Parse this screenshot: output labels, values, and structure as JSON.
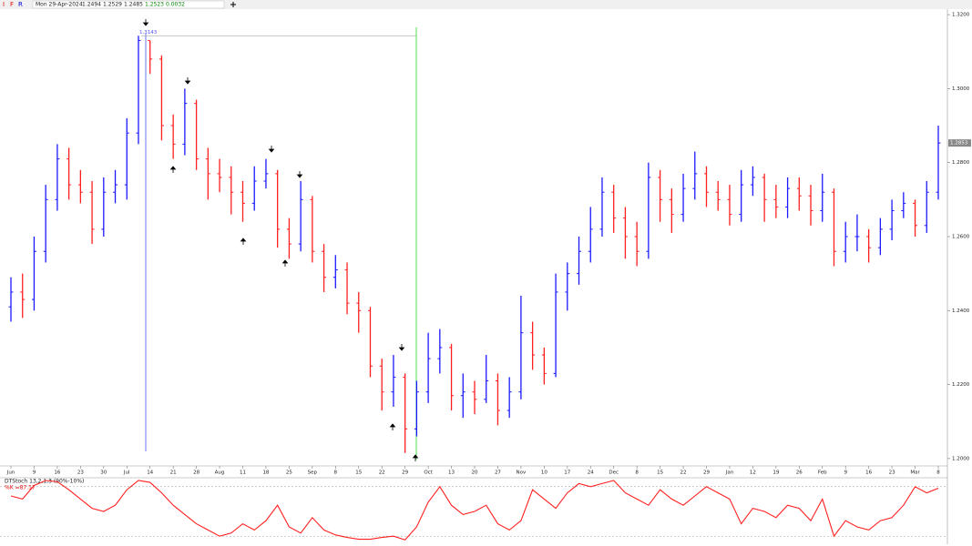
{
  "toolbar": {
    "icons": [
      "I",
      "F",
      "R"
    ],
    "date": "Mon 29-Apr-2024",
    "values": [
      "1.2494",
      "1.2529",
      "1.2485",
      "1.2523",
      "0.0032"
    ]
  },
  "chart_data": [
    {
      "type": "ohlc",
      "up_color": "#1a1aff",
      "down_color": "#ff1f1f",
      "categories": [
        "Jun",
        null,
        "9",
        null,
        "16",
        null,
        "23",
        null,
        "30",
        null,
        "Jul",
        null,
        "14",
        null,
        "21",
        null,
        "28",
        null,
        "Aug",
        null,
        "11",
        null,
        "18",
        null,
        "25",
        null,
        "Sep",
        null,
        "8",
        null,
        "15",
        null,
        "22",
        null,
        "29",
        null,
        "Oct",
        null,
        "13",
        null,
        "20",
        null,
        "27",
        null,
        "Nov",
        null,
        "10",
        null,
        "17",
        null,
        "24",
        null,
        "Dec",
        null,
        "8",
        null,
        "15",
        null,
        "22",
        null,
        "29",
        null,
        "Jan",
        null,
        "12",
        null,
        "19",
        null,
        "26",
        null,
        "Feb",
        null,
        "9",
        null,
        "16",
        null,
        "23",
        null,
        "Mar",
        null,
        "8"
      ],
      "open": [
        1.241,
        1.245,
        1.243,
        1.256,
        1.27,
        1.281,
        1.274,
        1.272,
        1.262,
        1.272,
        1.274,
        1.288,
        1.313,
        1.308,
        1.29,
        1.285,
        1.296,
        1.281,
        1.277,
        1.276,
        1.272,
        1.269,
        1.275,
        1.277,
        1.262,
        1.258,
        1.27,
        1.256,
        1.249,
        1.251,
        1.242,
        1.24,
        1.225,
        1.218,
        1.222,
        1.208,
        1.218,
        1.227,
        1.23,
        1.217,
        1.218,
        1.216,
        1.221,
        1.213,
        1.218,
        1.234,
        1.228,
        1.223,
        1.245,
        1.25,
        1.256,
        1.262,
        1.272,
        1.265,
        1.26,
        1.256,
        1.276,
        1.27,
        1.266,
        1.273,
        1.277,
        1.272,
        1.27,
        1.266,
        1.274,
        1.276,
        1.27,
        1.268,
        1.273,
        1.271,
        1.267,
        1.272,
        1.256,
        1.26,
        1.26,
        1.257,
        1.262,
        1.267,
        1.269,
        1.263,
        1.272
      ],
      "high": [
        1.249,
        1.25,
        1.26,
        1.274,
        1.285,
        1.284,
        1.278,
        1.275,
        1.276,
        1.278,
        1.292,
        1.3143,
        1.313,
        1.309,
        1.293,
        1.3,
        1.297,
        1.284,
        1.281,
        1.279,
        1.275,
        1.279,
        1.281,
        1.278,
        1.265,
        1.275,
        1.271,
        1.258,
        1.255,
        1.253,
        1.245,
        1.241,
        1.227,
        1.228,
        1.223,
        1.221,
        1.234,
        1.235,
        1.231,
        1.223,
        1.221,
        1.228,
        1.223,
        1.222,
        1.244,
        1.237,
        1.23,
        1.25,
        1.253,
        1.26,
        1.268,
        1.276,
        1.274,
        1.268,
        1.264,
        1.28,
        1.278,
        1.273,
        1.277,
        1.283,
        1.279,
        1.275,
        1.274,
        1.278,
        1.279,
        1.277,
        1.274,
        1.276,
        1.276,
        1.274,
        1.277,
        1.273,
        1.264,
        1.266,
        1.262,
        1.265,
        1.27,
        1.272,
        1.27,
        1.275,
        1.29
      ],
      "low": [
        1.237,
        1.238,
        1.24,
        1.253,
        1.267,
        1.27,
        1.269,
        1.258,
        1.26,
        1.269,
        1.27,
        1.285,
        1.304,
        1.286,
        1.281,
        1.282,
        1.278,
        1.27,
        1.272,
        1.266,
        1.264,
        1.267,
        1.273,
        1.257,
        1.254,
        1.256,
        1.253,
        1.245,
        1.246,
        1.239,
        1.234,
        1.222,
        1.213,
        1.214,
        1.2015,
        1.206,
        1.215,
        1.223,
        1.213,
        1.211,
        1.212,
        1.215,
        1.209,
        1.211,
        1.216,
        1.224,
        1.22,
        1.222,
        1.24,
        1.247,
        1.253,
        1.26,
        1.261,
        1.254,
        1.252,
        1.254,
        1.264,
        1.261,
        1.264,
        1.27,
        1.268,
        1.267,
        1.263,
        1.264,
        1.271,
        1.264,
        1.265,
        1.265,
        1.267,
        1.263,
        1.264,
        1.252,
        1.253,
        1.256,
        1.253,
        1.255,
        1.259,
        1.265,
        1.26,
        1.261,
        1.27
      ],
      "close": [
        1.245,
        1.243,
        1.256,
        1.27,
        1.281,
        1.274,
        1.272,
        1.262,
        1.272,
        1.274,
        1.288,
        1.313,
        1.308,
        1.29,
        1.285,
        1.296,
        1.281,
        1.277,
        1.276,
        1.272,
        1.269,
        1.275,
        1.277,
        1.262,
        1.258,
        1.27,
        1.256,
        1.249,
        1.251,
        1.242,
        1.24,
        1.225,
        1.218,
        1.222,
        1.208,
        1.218,
        1.227,
        1.23,
        1.217,
        1.218,
        1.216,
        1.221,
        1.213,
        1.218,
        1.234,
        1.228,
        1.223,
        1.245,
        1.25,
        1.256,
        1.262,
        1.272,
        1.265,
        1.26,
        1.256,
        1.276,
        1.27,
        1.266,
        1.273,
        1.277,
        1.272,
        1.27,
        1.266,
        1.274,
        1.276,
        1.27,
        1.268,
        1.273,
        1.271,
        1.267,
        1.272,
        1.256,
        1.26,
        1.26,
        1.257,
        1.262,
        1.267,
        1.269,
        1.263,
        1.272,
        1.2853
      ],
      "hline": 1.3143,
      "ylim": [
        1.198,
        1.3215
      ],
      "yticks": [
        {
          "value": 1.32,
          "label": "1.3200"
        },
        {
          "value": 1.3,
          "label": "1.3000"
        },
        {
          "value": 1.28,
          "label": "1.2800"
        },
        {
          "value": 1.26,
          "label": "1.2600"
        },
        {
          "value": 1.24,
          "label": "1.2400"
        },
        {
          "value": 1.22,
          "label": "1.2200"
        },
        {
          "value": 1.2,
          "label": "1.2000"
        }
      ]
    },
    {
      "type": "line",
      "title": "DTStoch 13,2,1,3 (90%-10%)",
      "label": "%K =87.57",
      "color": "#ff1f1f",
      "values": [
        75,
        70,
        92,
        100,
        98,
        85,
        70,
        55,
        50,
        60,
        85,
        100,
        97,
        80,
        60,
        45,
        30,
        20,
        10,
        15,
        30,
        20,
        35,
        60,
        25,
        15,
        40,
        20,
        12,
        8,
        5,
        5,
        8,
        10,
        4,
        25,
        65,
        90,
        60,
        45,
        50,
        60,
        30,
        20,
        35,
        85,
        70,
        55,
        80,
        95,
        90,
        95,
        100,
        80,
        70,
        60,
        85,
        70,
        60,
        75,
        90,
        80,
        70,
        30,
        55,
        50,
        40,
        60,
        55,
        35,
        70,
        10,
        35,
        25,
        20,
        35,
        40,
        60,
        90,
        80,
        87.57
      ],
      "levels": [
        90,
        10
      ],
      "ylim": [
        0,
        100
      ]
    }
  ]
}
